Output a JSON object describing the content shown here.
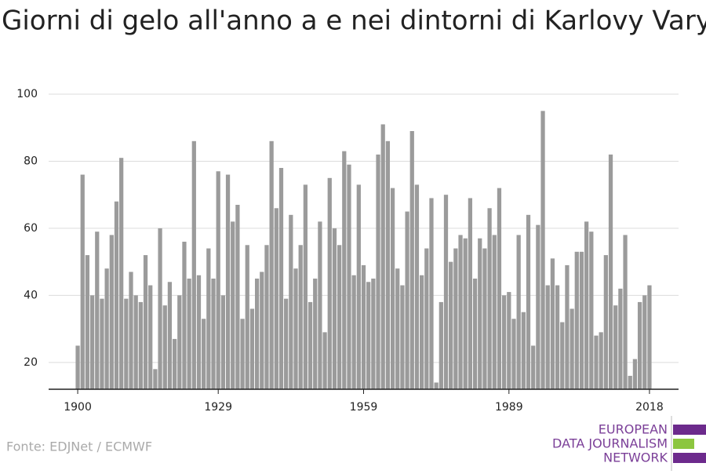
{
  "chart_data": {
    "type": "bar",
    "title": "Giorni di gelo all'anno a e nei dintorni di Karlovy Vary",
    "source": "Fonte: EDJNet / ECMWF",
    "logo": [
      "EUROPEAN",
      "DATA JOURNALISM",
      "NETWORK"
    ],
    "color": "#9b9b9b",
    "x": [
      1900,
      1901,
      1902,
      1903,
      1904,
      1905,
      1906,
      1907,
      1908,
      1909,
      1910,
      1911,
      1912,
      1913,
      1914,
      1915,
      1916,
      1917,
      1918,
      1919,
      1920,
      1921,
      1922,
      1923,
      1924,
      1925,
      1926,
      1927,
      1928,
      1929,
      1930,
      1931,
      1932,
      1933,
      1934,
      1935,
      1936,
      1937,
      1938,
      1939,
      1940,
      1941,
      1942,
      1943,
      1944,
      1945,
      1946,
      1947,
      1948,
      1949,
      1950,
      1951,
      1952,
      1953,
      1954,
      1955,
      1956,
      1957,
      1958,
      1959,
      1960,
      1961,
      1962,
      1963,
      1964,
      1965,
      1966,
      1967,
      1968,
      1969,
      1970,
      1971,
      1972,
      1973,
      1974,
      1975,
      1976,
      1977,
      1978,
      1979,
      1980,
      1981,
      1982,
      1983,
      1984,
      1985,
      1986,
      1987,
      1988,
      1989,
      1990,
      1991,
      1992,
      1993,
      1994,
      1995,
      1996,
      1997,
      1998,
      1999,
      2000,
      2001,
      2002,
      2003,
      2004,
      2005,
      2006,
      2007,
      2008,
      2009,
      2010,
      2011,
      2012,
      2013,
      2014,
      2015,
      2016,
      2017,
      2018
    ],
    "values": [
      25,
      76,
      52,
      40,
      59,
      39,
      48,
      58,
      68,
      81,
      39,
      47,
      40,
      38,
      52,
      43,
      18,
      60,
      37,
      44,
      27,
      40,
      56,
      45,
      86,
      46,
      33,
      54,
      45,
      77,
      40,
      76,
      62,
      67,
      33,
      55,
      36,
      45,
      47,
      55,
      86,
      66,
      78,
      39,
      64,
      48,
      55,
      73,
      38,
      45,
      62,
      29,
      75,
      60,
      55,
      83,
      79,
      46,
      73,
      49,
      44,
      45,
      82,
      91,
      86,
      72,
      48,
      43,
      65,
      89,
      73,
      46,
      54,
      69,
      14,
      38,
      70,
      50,
      54,
      58,
      57,
      69,
      45,
      57,
      54,
      66,
      58,
      72,
      40,
      41,
      33,
      58,
      35,
      64,
      25,
      61,
      95,
      43,
      51,
      43,
      32,
      49,
      36,
      53,
      53,
      62,
      59,
      28,
      29,
      52,
      82,
      37,
      42,
      58,
      16,
      21,
      38,
      40,
      43
    ],
    "xlim": [
      1894,
      2024
    ],
    "xticks": [
      1900,
      1929,
      1959,
      1989,
      2018
    ],
    "ylim": [
      12,
      100
    ],
    "yticks": [
      20,
      40,
      60,
      80,
      100
    ],
    "grid": true
  }
}
